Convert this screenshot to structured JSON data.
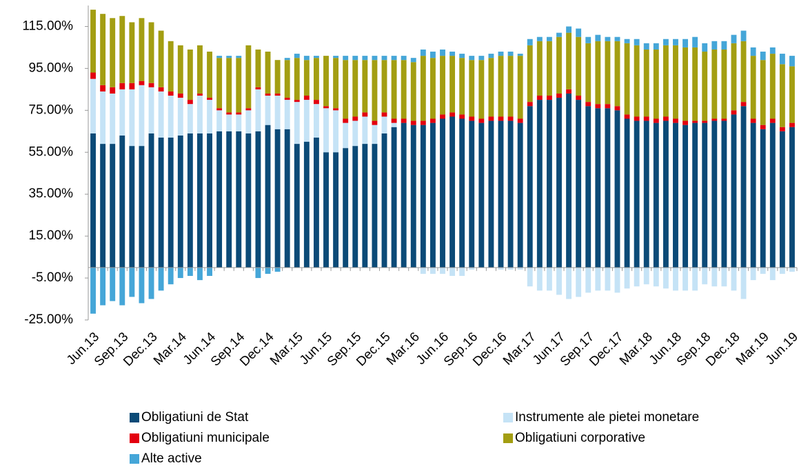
{
  "chart_data": {
    "type": "stacked-bar",
    "categories": [
      "Jun.13",
      null,
      null,
      "Sep.13",
      null,
      null,
      "Dec.13",
      null,
      null,
      "Mar.14",
      null,
      null,
      "Jun.14",
      null,
      null,
      "Sep.14",
      null,
      null,
      "Dec.14",
      null,
      null,
      "Mar.15",
      null,
      null,
      "Jun.15",
      null,
      null,
      "Sep.15",
      null,
      null,
      "Dec.15",
      null,
      null,
      "Mar.16",
      null,
      null,
      "Jun.16",
      null,
      null,
      "Sep.16",
      null,
      null,
      "Dec.16",
      null,
      null,
      "Mar.17",
      null,
      null,
      "Jun.17",
      null,
      null,
      "Sep.17",
      null,
      null,
      "Dec.17",
      null,
      null,
      "Mar.18",
      null,
      null,
      "Jun.18",
      null,
      null,
      "Sep.18",
      null,
      null,
      "Dec.18",
      null,
      null,
      "Mar.19",
      null,
      null,
      "Jun.19"
    ],
    "series": [
      {
        "name": "Obligatiuni de Stat",
        "color": "#0b4a77",
        "values": [
          64,
          59,
          59,
          63,
          58,
          58,
          64,
          62,
          62,
          63,
          64,
          64,
          64,
          65,
          65,
          65,
          64,
          65,
          68,
          66,
          66,
          59,
          60,
          62,
          55,
          55,
          57,
          58,
          59,
          59,
          64,
          67,
          69,
          68,
          68,
          69,
          71,
          72,
          71,
          70,
          69,
          70,
          70,
          70,
          69,
          77,
          80,
          80,
          81,
          83,
          80,
          77,
          76,
          76,
          75,
          71,
          70,
          70,
          69,
          70,
          69,
          68,
          69,
          69,
          70,
          70,
          73,
          77,
          69,
          66,
          69,
          65,
          67
        ]
      },
      {
        "name": "Instrumente ale pietei monetare",
        "color": "#c5e3f6",
        "values": [
          26,
          25,
          24,
          22,
          27,
          29,
          22,
          22,
          20,
          18,
          14,
          18,
          16,
          10,
          8,
          8,
          11,
          20,
          14,
          16,
          14,
          20,
          20,
          16,
          21,
          20,
          12,
          12,
          13,
          9,
          8,
          2,
          0,
          0,
          -3,
          -3,
          -3,
          -4,
          -4,
          -1,
          0,
          0,
          -1,
          -1,
          -1,
          -9,
          -11,
          -11,
          -13,
          -15,
          -14,
          -12,
          -11,
          -11,
          -12,
          -10,
          -9,
          -8,
          -9,
          -10,
          -11,
          -11,
          -11,
          -8,
          -9,
          -9,
          -11,
          -15,
          -6,
          -3,
          -6,
          -3,
          -2
        ]
      },
      {
        "name": "Obligatiuni municipale",
        "color": "#e3000f",
        "values": [
          3,
          3,
          3,
          3,
          3,
          2,
          2,
          2,
          2,
          2,
          2,
          1,
          1,
          1,
          1,
          1,
          1,
          1,
          1,
          1,
          1,
          1,
          2,
          2,
          1,
          1,
          2,
          2,
          2,
          2,
          2,
          2,
          2,
          2,
          2,
          2,
          2,
          2,
          2,
          2,
          2,
          2,
          2,
          2,
          2,
          2,
          2,
          2,
          2,
          2,
          2,
          2,
          2,
          2,
          2,
          2,
          2,
          2,
          2,
          2,
          2,
          2,
          1,
          1,
          1,
          1,
          2,
          2,
          2,
          2,
          2,
          2,
          2
        ]
      },
      {
        "name": "Obligatiuni corporative",
        "color": "#a39e12",
        "values": [
          30,
          34,
          33,
          32,
          29,
          30,
          29,
          27,
          24,
          23,
          24,
          23,
          22,
          24,
          26,
          26,
          30,
          18,
          20,
          16,
          18,
          20,
          17,
          20,
          24,
          24,
          28,
          27,
          25,
          29,
          25,
          28,
          28,
          28,
          31,
          29,
          28,
          27,
          27,
          27,
          28,
          28,
          29,
          29,
          30,
          27,
          26,
          26,
          27,
          27,
          28,
          28,
          30,
          30,
          31,
          34,
          34,
          32,
          33,
          34,
          35,
          35,
          35,
          33,
          33,
          33,
          32,
          29,
          30,
          31,
          31,
          30,
          27
        ]
      },
      {
        "name": "Alte active",
        "color": "#45a6d8",
        "values": [
          -22,
          -18,
          -16,
          -18,
          -14,
          -17,
          -15,
          -11,
          -8,
          -5,
          -4,
          -6,
          -4,
          1,
          1,
          1,
          0,
          -5,
          -3,
          -2,
          1,
          2,
          2,
          1,
          0,
          1,
          2,
          2,
          2,
          2,
          2,
          2,
          2,
          2,
          3,
          3,
          3,
          2,
          2,
          2,
          2,
          2,
          2,
          2,
          1,
          3,
          2,
          2,
          2,
          3,
          4,
          3,
          3,
          2,
          2,
          2,
          3,
          3,
          3,
          3,
          3,
          4,
          5,
          4,
          4,
          4,
          4,
          5,
          4,
          4,
          3,
          5,
          5
        ]
      }
    ],
    "ylim": [
      -25,
      125
    ],
    "yticks": [
      {
        "value": -25,
        "label": "-25.00%"
      },
      {
        "value": -5,
        "label": "-5.00%"
      },
      {
        "value": 15,
        "label": "15.00%"
      },
      {
        "value": 35,
        "label": "35.00%"
      },
      {
        "value": 55,
        "label": "55.00%"
      },
      {
        "value": 75,
        "label": "75.00%"
      },
      {
        "value": 95,
        "label": "95.00%"
      },
      {
        "value": 115,
        "label": "115.00%"
      }
    ]
  }
}
